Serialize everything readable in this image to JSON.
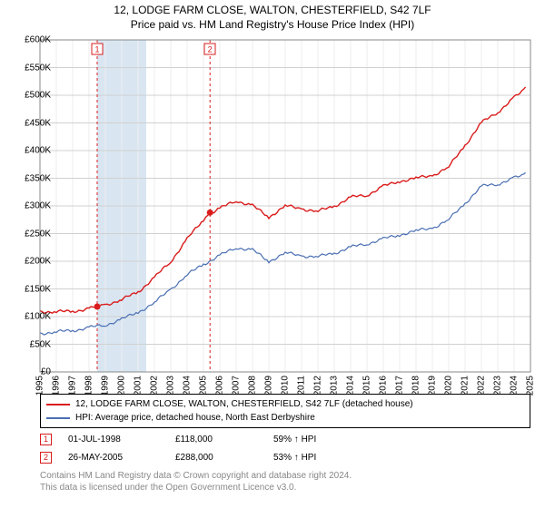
{
  "title_line1": "12, LODGE FARM CLOSE, WALTON, CHESTERFIELD, S42 7LF",
  "title_line2": "Price paid vs. HM Land Registry's House Price Index (HPI)",
  "chart": {
    "type": "line",
    "background_color": "#ffffff",
    "grid_color": "#d0d0d0",
    "grid_minor_color": "#eeeeee",
    "recession_band_color": "#d9e6f2",
    "ylim": [
      0,
      600000
    ],
    "ytick_step": 50000,
    "ytick_prefix": "£",
    "ytick_suffix": "K",
    "xlim": [
      1995,
      2025
    ],
    "xtick_step": 1,
    "title_fontsize": 12,
    "label_fontsize": 10,
    "recession_band": {
      "start": 1998.5,
      "end": 2001.5
    },
    "series": [
      {
        "id": "property",
        "label": "12, LODGE FARM CLOSE, WALTON, CHESTERFIELD, S42 7LF (detached house)",
        "color": "#d91c1c",
        "line_width": 1.4,
        "years": [
          1995,
          1996,
          1997,
          1998,
          1998.5,
          1999,
          2000,
          2001,
          2002,
          2003,
          2004,
          2005,
          2005.4,
          2006,
          2007,
          2008,
          2009,
          2010,
          2011,
          2012,
          2013,
          2014,
          2015,
          2016,
          2017,
          2018,
          2019,
          2020,
          2021,
          2022,
          2023,
          2024,
          2024.7
        ],
        "values": [
          110000,
          108000,
          110000,
          114000,
          118000,
          122000,
          130000,
          145000,
          170000,
          200000,
          240000,
          275000,
          288000,
          295000,
          310000,
          300000,
          280000,
          300000,
          295000,
          290000,
          300000,
          315000,
          320000,
          335000,
          345000,
          350000,
          355000,
          370000,
          410000,
          450000,
          470000,
          495000,
          515000
        ]
      },
      {
        "id": "hpi",
        "label": "HPI: Average price, detached house, North East Derbyshire",
        "color": "#4a6fb3",
        "line_width": 1.2,
        "years": [
          1995,
          1996,
          1997,
          1998,
          1999,
          2000,
          2001,
          2002,
          2003,
          2004,
          2005,
          2006,
          2007,
          2008,
          2009,
          2010,
          2011,
          2012,
          2013,
          2014,
          2015,
          2016,
          2017,
          2018,
          2019,
          2020,
          2021,
          2022,
          2023,
          2024,
          2024.7
        ],
        "values": [
          70000,
          72000,
          75000,
          80000,
          85000,
          95000,
          108000,
          125000,
          150000,
          175000,
          195000,
          210000,
          225000,
          220000,
          200000,
          215000,
          210000,
          208000,
          215000,
          225000,
          232000,
          240000,
          248000,
          255000,
          260000,
          275000,
          305000,
          335000,
          340000,
          350000,
          360000
        ]
      }
    ],
    "events": [
      {
        "n": 1,
        "year": 1998.5,
        "value": 118000,
        "date": "01-JUL-1998",
        "price": "£118,000",
        "pct": "59% ↑ HPI"
      },
      {
        "n": 2,
        "year": 2005.4,
        "value": 288000,
        "date": "26-MAY-2005",
        "price": "£288,000",
        "pct": "53% ↑ HPI"
      }
    ],
    "event_line_color": "#d91c1c",
    "event_dot_color": "#d91c1c"
  },
  "legend_header": "",
  "footer_line1": "Contains HM Land Registry data © Crown copyright and database right 2024.",
  "footer_line2": "This data is licensed under the Open Government Licence v3.0."
}
